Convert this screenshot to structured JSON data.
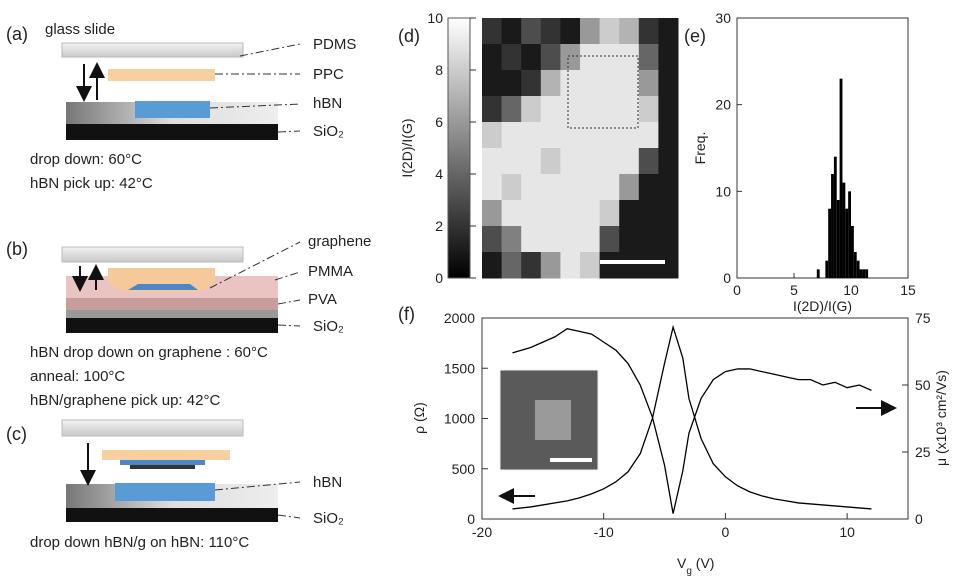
{
  "diagram_a": {
    "label": "(a)",
    "glass_slide": "glass slide",
    "layers": [
      "PDMS",
      "PPC",
      "hBN",
      "SiO₂"
    ],
    "notes": [
      "drop down: 60°C",
      "hBN pick up: 42°C"
    ]
  },
  "diagram_b": {
    "label": "(b)",
    "layers": [
      "graphene",
      "PMMA",
      "PVA",
      "SiO₂"
    ],
    "notes": [
      "hBN drop down on graphene : 60°C",
      "anneal: 100°C",
      "hBN/graphene pick up: 42°C"
    ]
  },
  "diagram_c": {
    "label": "(c)",
    "layers": [
      "hBN",
      "SiO₂"
    ],
    "notes": [
      "drop down hBN/g on hBN: 110°C"
    ]
  },
  "chart_data": [
    {
      "type": "heatmap",
      "label": "(d)",
      "colorbar_label": "I(2D)/I(G)",
      "clim": [
        0,
        10
      ],
      "cticks": [
        0,
        2,
        4,
        6,
        8,
        10
      ],
      "values": [
        [
          2,
          1,
          3,
          2,
          1,
          6,
          8,
          7,
          2,
          1
        ],
        [
          1,
          2,
          1,
          3,
          6,
          9,
          9,
          9,
          4,
          1
        ],
        [
          1,
          1,
          2,
          7,
          9,
          9,
          9,
          9,
          6,
          1
        ],
        [
          2,
          4,
          8,
          9,
          9,
          9,
          9,
          9,
          8,
          1
        ],
        [
          8,
          9,
          9,
          9,
          9,
          9,
          9,
          9,
          9,
          1
        ],
        [
          9,
          9,
          9,
          8,
          9,
          9,
          9,
          9,
          3,
          1
        ],
        [
          9,
          8,
          9,
          9,
          9,
          9,
          9,
          6,
          1,
          1
        ],
        [
          6,
          9,
          9,
          9,
          9,
          9,
          8,
          1,
          1,
          1
        ],
        [
          3,
          5,
          9,
          9,
          9,
          9,
          3,
          1,
          1,
          1
        ],
        [
          1,
          4,
          2,
          6,
          9,
          8,
          1,
          1,
          1,
          1
        ]
      ]
    },
    {
      "type": "histogram",
      "label": "(e)",
      "x_label": "I(2D)/I(G)",
      "y_label": "Freq.",
      "bins": [
        7.0,
        7.25,
        7.5,
        7.75,
        8.0,
        8.25,
        8.5,
        8.75,
        9.0,
        9.25,
        9.5,
        9.75,
        10.0,
        10.25,
        10.5,
        10.75,
        11.0,
        11.25,
        11.5
      ],
      "values": [
        1,
        0,
        0,
        2,
        8,
        12,
        14,
        9,
        23,
        11,
        8,
        10,
        6,
        3,
        2,
        1,
        1,
        1
      ],
      "color": "#000000",
      "xlim": [
        0,
        15
      ],
      "ylim": [
        0,
        30
      ],
      "xticks": [
        0,
        5,
        10,
        15
      ],
      "yticks": [
        0,
        10,
        20,
        30
      ]
    },
    {
      "type": "line",
      "label": "(f)",
      "x_label_parts": [
        "V",
        "g",
        " (V)"
      ],
      "y_label": "ρ (Ω)",
      "y2_label": "μ (x10³ cm²/Vs)",
      "x": [
        -17.5,
        -16,
        -15,
        -14,
        -13,
        -12,
        -11,
        -10,
        -9,
        -8,
        -7,
        -6,
        -5,
        -4.3,
        -3.5,
        -3,
        -2,
        -1,
        0,
        1,
        2,
        3,
        4,
        5,
        6,
        7,
        8,
        9,
        10,
        11,
        12
      ],
      "series": [
        {
          "color": "#000000",
          "values": [
            100,
            120,
            140,
            160,
            180,
            210,
            250,
            300,
            370,
            470,
            650,
            1000,
            1550,
            1910,
            1600,
            1200,
            800,
            550,
            420,
            330,
            270,
            230,
            200,
            180,
            160,
            150,
            140,
            130,
            120,
            110,
            100
          ]
        },
        {
          "color": "#000000",
          "axis": "y2",
          "values": [
            62,
            64,
            66,
            68,
            71,
            70,
            69,
            66,
            63,
            58,
            50,
            38,
            20,
            2,
            18,
            32,
            45,
            52,
            55,
            56,
            56,
            55,
            54,
            53,
            52,
            52,
            50,
            51,
            49,
            50,
            48
          ]
        }
      ],
      "xlim": [
        -20,
        15
      ],
      "xticks": [
        -20,
        -10,
        0,
        10
      ],
      "ylim": [
        0,
        2000
      ],
      "yticks": [
        0,
        500,
        1000,
        1500,
        2000
      ],
      "y2lim": [
        0,
        75
      ],
      "y2ticks": [
        0,
        25,
        50,
        75
      ]
    }
  ]
}
